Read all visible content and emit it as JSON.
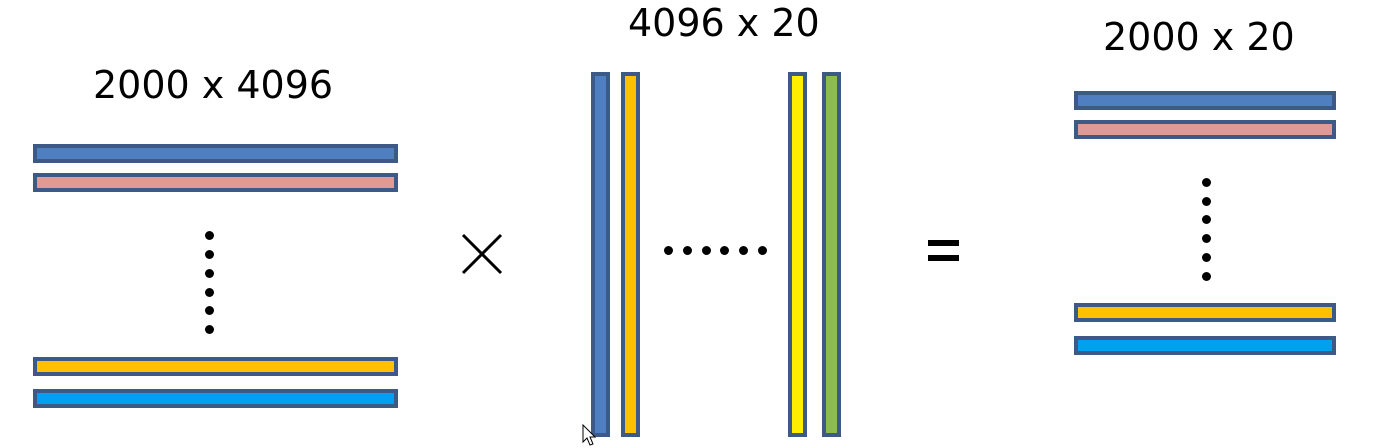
{
  "labels": {
    "left_matrix": "2000 x 4096",
    "middle_matrix": "4096 x 20",
    "result_matrix": "2000 x 20"
  },
  "operators": {
    "multiply": "×",
    "equals": "="
  },
  "colors": {
    "border": "#3d5a87",
    "blue": "#4f7fc1",
    "pink": "#e09a96",
    "orange": "#ffc000",
    "light_blue": "#00a0f0",
    "yellow": "#ffee00",
    "green": "#8dbb4e"
  },
  "icons": {
    "cursor": "mouse-pointer-icon"
  }
}
